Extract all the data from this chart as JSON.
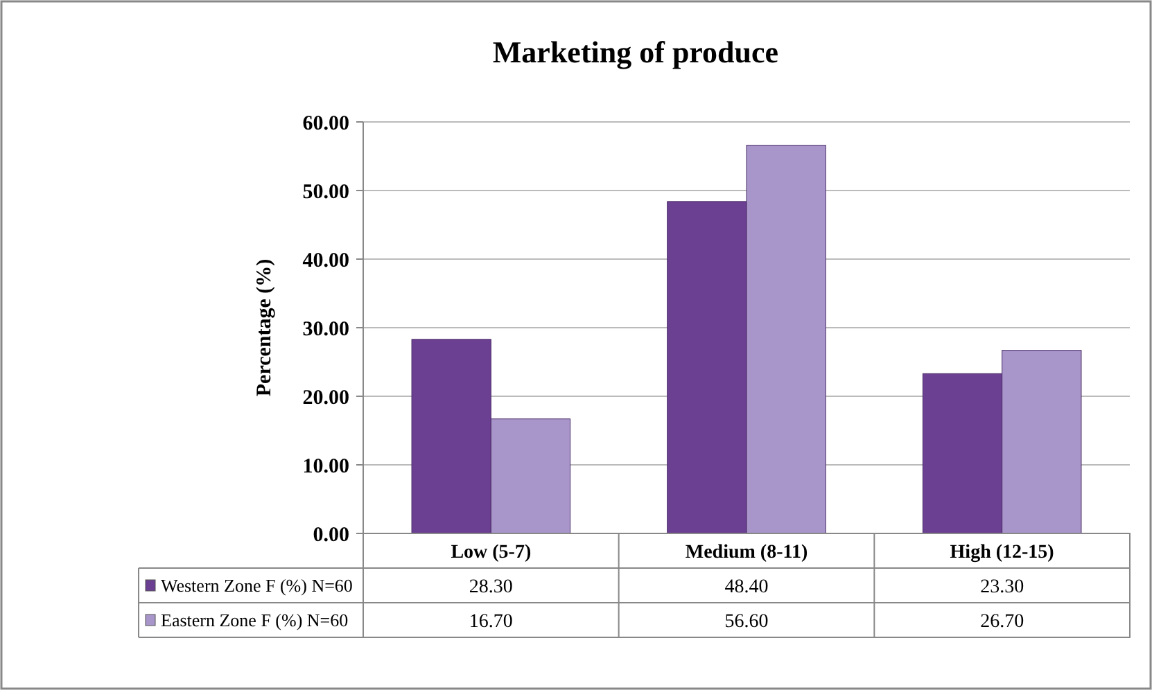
{
  "chart_data": {
    "type": "bar",
    "title": "Marketing of produce",
    "ylabel": "Percentage (%)",
    "categories": [
      "Low (5-7)",
      "Medium (8-11)",
      "High (12-15)"
    ],
    "series": [
      {
        "name": "Western Zone F (%) N=60",
        "color": "#6b3f91",
        "values": [
          28.3,
          48.4,
          23.3
        ],
        "value_labels": [
          "28.30",
          "48.40",
          "23.30"
        ]
      },
      {
        "name": "Eastern Zone F (%) N=60",
        "color": "#a895c9",
        "values": [
          16.7,
          56.6,
          26.7
        ],
        "value_labels": [
          "16.70",
          "56.60",
          "26.70"
        ]
      }
    ],
    "ylim": [
      0,
      60
    ],
    "yticks": [
      {
        "value": 0,
        "label": "0.00"
      },
      {
        "value": 10,
        "label": "10.00"
      },
      {
        "value": 20,
        "label": "20.00"
      },
      {
        "value": 30,
        "label": "30.00"
      },
      {
        "value": 40,
        "label": "40.00"
      },
      {
        "value": 50,
        "label": "50.00"
      },
      {
        "value": 60,
        "label": "60.00"
      }
    ],
    "grid": "y",
    "legend": "bottom"
  }
}
